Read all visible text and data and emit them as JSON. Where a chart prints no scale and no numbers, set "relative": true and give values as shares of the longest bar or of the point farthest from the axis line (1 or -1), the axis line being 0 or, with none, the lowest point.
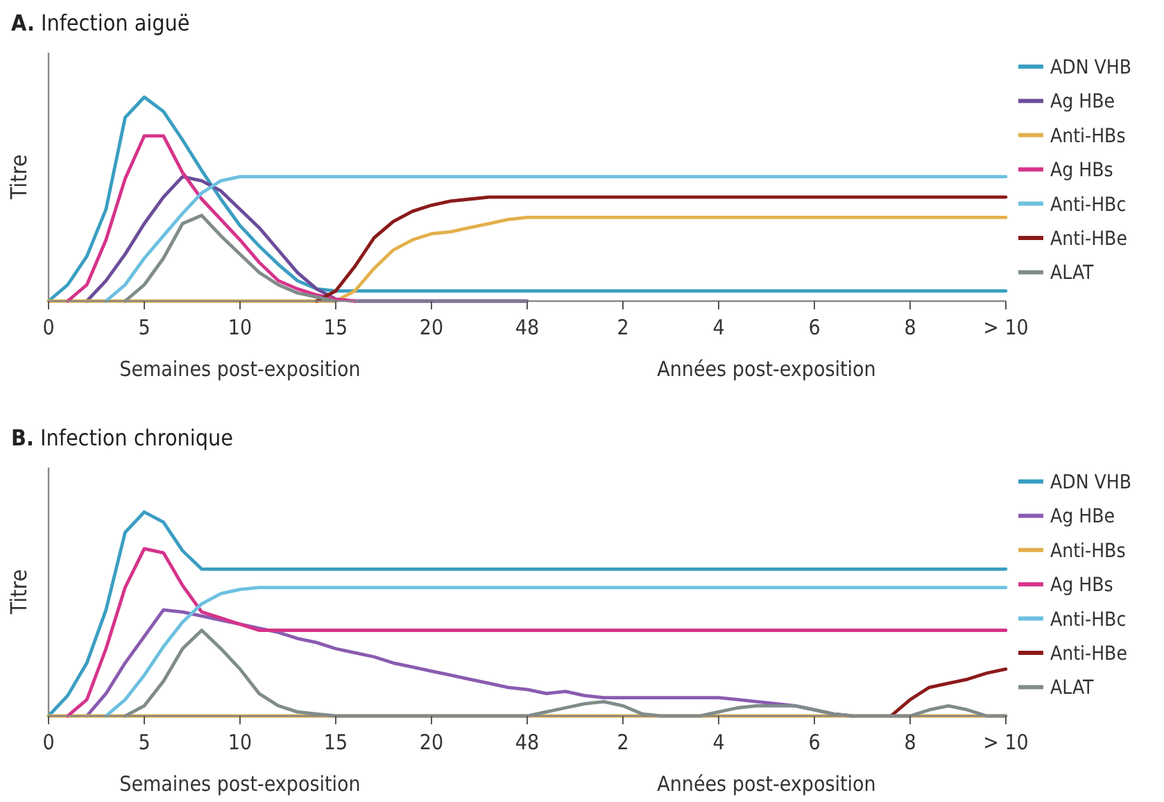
{
  "chart_data": [
    {
      "type": "line",
      "title": "A. Infection aiguë",
      "xlabel": "Semaines post-exposition",
      "ylabel": "Titre",
      "annotations": [
        "Années post-exposition"
      ],
      "relative": true,
      "legend": "right",
      "categories": [
        "0",
        null,
        null,
        null,
        null,
        "5",
        null,
        null,
        null,
        null,
        "10",
        null,
        null,
        null,
        null,
        "15",
        null,
        null,
        null,
        null,
        "20",
        null,
        null,
        null,
        null,
        "48",
        null,
        null,
        null,
        null,
        "2",
        null,
        null,
        null,
        null,
        "4",
        null,
        null,
        null,
        null,
        "6",
        null,
        null,
        null,
        null,
        "8",
        null,
        null,
        null,
        null,
        "> 10"
      ],
      "series": [
        {
          "name": "ADN VHB",
          "color": "#3a9ec2",
          "values": [
            0,
            0.08,
            0.22,
            0.45,
            0.9,
            1.0,
            0.93,
            0.79,
            0.64,
            0.5,
            0.37,
            0.27,
            0.18,
            0.1,
            0.06,
            0.05,
            0.05,
            0.05,
            0.05,
            0.05,
            0.05,
            0.05,
            0.05,
            0.05,
            0.05,
            0.05,
            0.05,
            0.05,
            0.05,
            0.05,
            0.05,
            0.05,
            0.05,
            0.05,
            0.05,
            0.05,
            0.05,
            0.05,
            0.05,
            0.05,
            0.05,
            0.05,
            0.05,
            0.05,
            0.05,
            0.05,
            0.05,
            0.05,
            0.05,
            0.05,
            0.05
          ]
        },
        {
          "name": "Ag HBe",
          "color": "#6b4c9a",
          "values": [
            null,
            null,
            0,
            0.1,
            0.23,
            0.38,
            0.51,
            0.61,
            0.59,
            0.54,
            0.45,
            0.36,
            0.25,
            0.14,
            0.06,
            0.01,
            0,
            0,
            0,
            0,
            0,
            0,
            0,
            0,
            0,
            0,
            null,
            null,
            null,
            null,
            null,
            null,
            null,
            null,
            null,
            null,
            null,
            null,
            null,
            null,
            null,
            null,
            null,
            null,
            null,
            null,
            null,
            null,
            null,
            null,
            null
          ]
        },
        {
          "name": "Anti-HBs",
          "color": "#e3b04b",
          "values": [
            0,
            0,
            0,
            0,
            0,
            0,
            0,
            0,
            0,
            0,
            0,
            0,
            0,
            0,
            0,
            0,
            0.05,
            0.16,
            0.25,
            0.3,
            0.33,
            0.34,
            0.36,
            0.38,
            0.4,
            0.41,
            0.41,
            0.41,
            0.41,
            0.41,
            0.41,
            0.41,
            0.41,
            0.41,
            0.41,
            0.41,
            0.41,
            0.41,
            0.41,
            0.41,
            0.41,
            0.41,
            0.41,
            0.41,
            0.41,
            0.41,
            0.41,
            0.41,
            0.41,
            0.41,
            0.41
          ]
        },
        {
          "name": "Ag HBs",
          "color": "#d6338b",
          "values": [
            null,
            0,
            0.08,
            0.3,
            0.6,
            0.81,
            0.81,
            0.63,
            0.5,
            0.4,
            0.3,
            0.19,
            0.1,
            0.06,
            0.03,
            0.01,
            0,
            null,
            null,
            null,
            null,
            null,
            null,
            null,
            null,
            null,
            null,
            null,
            null,
            null,
            null,
            null,
            null,
            null,
            null,
            null,
            null,
            null,
            null,
            null,
            null,
            null,
            null,
            null,
            null,
            null,
            null,
            null,
            null,
            null,
            null
          ]
        },
        {
          "name": "Anti-HBc",
          "color": "#6cc0e0",
          "values": [
            null,
            null,
            null,
            0,
            0.08,
            0.21,
            0.32,
            0.43,
            0.53,
            0.59,
            0.61,
            0.61,
            0.61,
            0.61,
            0.61,
            0.61,
            0.61,
            0.61,
            0.61,
            0.61,
            0.61,
            0.61,
            0.61,
            0.61,
            0.61,
            0.61,
            0.61,
            0.61,
            0.61,
            0.61,
            0.61,
            0.61,
            0.61,
            0.61,
            0.61,
            0.61,
            0.61,
            0.61,
            0.61,
            0.61,
            0.61,
            0.61,
            0.61,
            0.61,
            0.61,
            0.61,
            0.61,
            0.61,
            0.61,
            0.61,
            0.61
          ]
        },
        {
          "name": "Anti-HBe",
          "color": "#8b1a1a",
          "values": [
            null,
            null,
            null,
            null,
            null,
            null,
            null,
            null,
            null,
            null,
            null,
            null,
            null,
            null,
            0,
            0.05,
            0.17,
            0.31,
            0.39,
            0.44,
            0.47,
            0.49,
            0.5,
            0.51,
            0.51,
            0.51,
            0.51,
            0.51,
            0.51,
            0.51,
            0.51,
            0.51,
            0.51,
            0.51,
            0.51,
            0.51,
            0.51,
            0.51,
            0.51,
            0.51,
            0.51,
            0.51,
            0.51,
            0.51,
            0.51,
            0.51,
            0.51,
            0.51,
            0.51,
            0.51,
            0.51
          ]
        },
        {
          "name": "ALAT",
          "color": "#7f8c8a",
          "values": [
            null,
            null,
            null,
            null,
            0,
            0.08,
            0.21,
            0.38,
            0.42,
            0.32,
            0.23,
            0.14,
            0.08,
            0.04,
            0.02,
            0,
            null,
            null,
            null,
            null,
            null,
            null,
            null,
            null,
            null,
            null,
            null,
            null,
            null,
            null,
            null,
            null,
            null,
            null,
            null,
            null,
            null,
            null,
            null,
            null,
            null,
            null,
            null,
            null,
            null,
            null,
            null,
            null,
            null,
            null,
            null
          ]
        }
      ]
    },
    {
      "type": "line",
      "title": "B. Infection chronique",
      "xlabel": "Semaines post-exposition",
      "ylabel": "Titre",
      "annotations": [
        "Années post-exposition"
      ],
      "relative": true,
      "legend": "right",
      "categories": [
        "0",
        null,
        null,
        null,
        null,
        "5",
        null,
        null,
        null,
        null,
        "10",
        null,
        null,
        null,
        null,
        "15",
        null,
        null,
        null,
        null,
        "20",
        null,
        null,
        null,
        null,
        "48",
        null,
        null,
        null,
        null,
        "2",
        null,
        null,
        null,
        null,
        "4",
        null,
        null,
        null,
        null,
        "6",
        null,
        null,
        null,
        null,
        "8",
        null,
        null,
        null,
        null,
        "> 10"
      ],
      "series": [
        {
          "name": "ADN VHB",
          "color": "#3a9ec2",
          "values": [
            0,
            0.1,
            0.26,
            0.52,
            0.9,
            1.0,
            0.95,
            0.81,
            0.72,
            0.72,
            0.72,
            0.72,
            0.72,
            0.72,
            0.72,
            0.72,
            0.72,
            0.72,
            0.72,
            0.72,
            0.72,
            0.72,
            0.72,
            0.72,
            0.72,
            0.72,
            0.72,
            0.72,
            0.72,
            0.72,
            0.72,
            0.72,
            0.72,
            0.72,
            0.72,
            0.72,
            0.72,
            0.72,
            0.72,
            0.72,
            0.72,
            0.72,
            0.72,
            0.72,
            0.72,
            0.72,
            0.72,
            0.72,
            0.72,
            0.72,
            0.72
          ]
        },
        {
          "name": "Ag HBe",
          "color": "#8a5bb0",
          "values": [
            null,
            null,
            0,
            0.11,
            0.26,
            0.39,
            0.52,
            0.51,
            0.49,
            0.47,
            0.45,
            0.43,
            0.41,
            0.38,
            0.36,
            0.33,
            0.31,
            0.29,
            0.26,
            0.24,
            0.22,
            0.2,
            0.18,
            0.16,
            0.14,
            0.13,
            0.11,
            0.12,
            0.1,
            0.09,
            0.09,
            0.09,
            0.09,
            0.09,
            0.09,
            0.09,
            0.08,
            0.07,
            0.06,
            0.05,
            0.03,
            0.01,
            0,
            null,
            null,
            null,
            null,
            null,
            null,
            null,
            null
          ]
        },
        {
          "name": "Anti-HBs",
          "color": "#e3b04b",
          "values": [
            0,
            0,
            0,
            0,
            0,
            0,
            0,
            0,
            0,
            0,
            0,
            0,
            0,
            0,
            0,
            0,
            0,
            0,
            0,
            0,
            0,
            0,
            0,
            0,
            0,
            0,
            0,
            0,
            0,
            0,
            0,
            0,
            0,
            0,
            0,
            0,
            0,
            0,
            0,
            0,
            0,
            0,
            0,
            0,
            0,
            0,
            0,
            0,
            0,
            0,
            0
          ]
        },
        {
          "name": "Ag HBs",
          "color": "#d6338b",
          "values": [
            null,
            0,
            0.08,
            0.33,
            0.63,
            0.82,
            0.8,
            0.64,
            0.51,
            0.48,
            0.45,
            0.42,
            0.42,
            0.42,
            0.42,
            0.42,
            0.42,
            0.42,
            0.42,
            0.42,
            0.42,
            0.42,
            0.42,
            0.42,
            0.42,
            0.42,
            0.42,
            0.42,
            0.42,
            0.42,
            0.42,
            0.42,
            0.42,
            0.42,
            0.42,
            0.42,
            0.42,
            0.42,
            0.42,
            0.42,
            0.42,
            0.42,
            0.42,
            0.42,
            0.42,
            0.42,
            0.42,
            0.42,
            0.42,
            0.42,
            0.42
          ]
        },
        {
          "name": "Anti-HBc",
          "color": "#6cc0e0",
          "values": [
            null,
            null,
            null,
            0,
            0.08,
            0.2,
            0.34,
            0.46,
            0.55,
            0.6,
            0.62,
            0.63,
            0.63,
            0.63,
            0.63,
            0.63,
            0.63,
            0.63,
            0.63,
            0.63,
            0.63,
            0.63,
            0.63,
            0.63,
            0.63,
            0.63,
            0.63,
            0.63,
            0.63,
            0.63,
            0.63,
            0.63,
            0.63,
            0.63,
            0.63,
            0.63,
            0.63,
            0.63,
            0.63,
            0.63,
            0.63,
            0.63,
            0.63,
            0.63,
            0.63,
            0.63,
            0.63,
            0.63,
            0.63,
            0.63,
            0.63
          ]
        },
        {
          "name": "Anti-HBe",
          "color": "#8b1a1a",
          "values": [
            null,
            null,
            null,
            null,
            null,
            null,
            null,
            null,
            null,
            null,
            null,
            null,
            null,
            null,
            null,
            null,
            null,
            null,
            null,
            null,
            null,
            null,
            null,
            null,
            null,
            null,
            null,
            null,
            null,
            null,
            null,
            null,
            null,
            null,
            null,
            null,
            null,
            null,
            null,
            null,
            null,
            null,
            null,
            null,
            0,
            0.08,
            0.14,
            0.16,
            0.18,
            0.21,
            0.23
          ]
        },
        {
          "name": "ALAT",
          "color": "#7f8c8a",
          "values": [
            null,
            null,
            null,
            null,
            0,
            0.05,
            0.17,
            0.33,
            0.42,
            0.33,
            0.23,
            0.11,
            0.05,
            0.02,
            0.01,
            0,
            0,
            0,
            0,
            0,
            0,
            0,
            0,
            0,
            0,
            0,
            0.02,
            0.04,
            0.06,
            0.07,
            0.05,
            0.01,
            0,
            0,
            0,
            0.02,
            0.04,
            0.05,
            0.05,
            0.05,
            0.03,
            0.01,
            0,
            0,
            0,
            0,
            0.03,
            0.05,
            0.03,
            0,
            0
          ]
        }
      ]
    }
  ]
}
